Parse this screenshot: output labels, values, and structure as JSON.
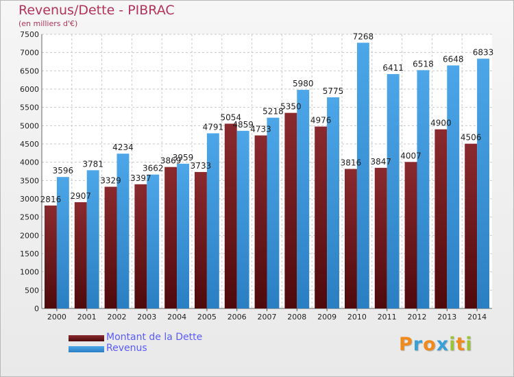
{
  "title": "Revenus/Dette - PIBRAC",
  "subtitle": "(en milliers d'€)",
  "colors": {
    "dette": "#7b1f24",
    "revenus": "#3d99de",
    "title": "#b5325a"
  },
  "chart_data": {
    "type": "bar",
    "categories": [
      "2000",
      "2001",
      "2002",
      "2003",
      "2004",
      "2005",
      "2006",
      "2007",
      "2008",
      "2009",
      "2010",
      "2011",
      "2012",
      "2013",
      "2014"
    ],
    "series": [
      {
        "name": "Montant de la Dette",
        "values": [
          2816,
          2907,
          3329,
          3397,
          3869,
          3733,
          5054,
          4733,
          5350,
          4976,
          3816,
          3847,
          4007,
          4900,
          4506
        ],
        "labels": [
          "2816",
          "2907",
          "3329",
          "3397",
          "3869",
          "3733",
          "5054",
          "4733",
          "5350",
          "4976",
          "3816",
          "3847",
          "4007",
          "4900",
          "4506"
        ]
      },
      {
        "name": "Revenus",
        "values": [
          3596,
          3781,
          4234,
          3662,
          3959,
          4791,
          4859,
          5218,
          5980,
          5775,
          7268,
          6411,
          6518,
          6648,
          6833
        ],
        "labels": [
          "3596",
          "3781",
          "4234",
          "3662",
          "3959",
          "4791",
          "4859",
          "5218",
          "5980",
          "5775",
          "7268",
          "6411",
          "6518",
          "6648",
          "6833"
        ]
      }
    ],
    "ylim": [
      0,
      7500
    ],
    "yticks": [
      0,
      500,
      1000,
      1500,
      2000,
      2500,
      3000,
      3500,
      4000,
      4500,
      5000,
      5500,
      6000,
      6500,
      7000,
      7500
    ],
    "grid": true,
    "legend": "bottom-left"
  },
  "legend": {
    "items": [
      {
        "label": "Montant de la Dette",
        "color": "#7b1f24"
      },
      {
        "label": "Revenus",
        "color": "#3d99de"
      }
    ]
  },
  "logo": {
    "letters": [
      "P",
      "r",
      "o",
      "x",
      "i",
      "t",
      "i"
    ],
    "colors": [
      "#f08a1c",
      "#3aa0d8",
      "#f08a1c",
      "#3aa0d8",
      "#9cc33a",
      "#f08a1c",
      "#9cc33a"
    ]
  }
}
